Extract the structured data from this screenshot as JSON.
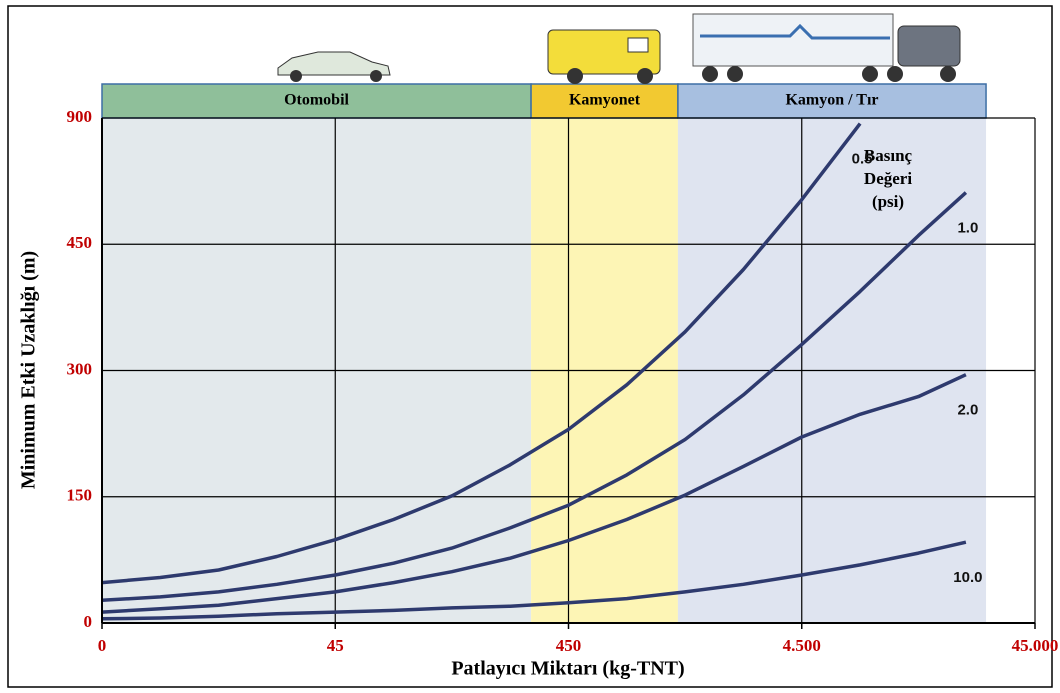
{
  "chart_data": {
    "type": "line",
    "x_label": "Patlayıcı Miktarı (kg-TNT)",
    "y_label": "Minimum Etki Uzaklığı (m)",
    "legend_title": "Basınç Değeri (psi)",
    "xlim": [
      0,
      45000
    ],
    "xticks": [
      0,
      45,
      450,
      {
        "value": 4500,
        "label": "4.500"
      },
      {
        "value": 45000,
        "label": "45.000"
      }
    ],
    "ylim": [
      0,
      900
    ],
    "yticks": [
      0,
      150,
      300,
      450,
      900
    ],
    "grid": true,
    "bands": [
      {
        "label": "Otomobil",
        "from": 0,
        "to": 385,
        "color": "#e3e9ec",
        "header_color": "#8fbf9a"
      },
      {
        "label": "Kamyonet",
        "from": 385,
        "to": 2350,
        "color": "#fdf5b5",
        "header_color": "#f2c931"
      },
      {
        "label": "Kamyon / Tır",
        "from": 2350,
        "to": 36500,
        "color": "#dfe4f0",
        "header_color": "#a7bfe0"
      }
    ],
    "x": [
      0,
      11.25,
      22.5,
      33.75,
      45,
      146.25,
      247.5,
      348.75,
      450,
      1462.5,
      2475,
      3487.5,
      4500,
      14625,
      24750,
      33000
    ],
    "series": [
      {
        "name": "0.5",
        "color": "#2e3a6e",
        "values": [
          48,
          54,
          63,
          79,
          99,
          123,
          151,
          188,
          230,
          283,
          346,
          420,
          609,
          880,
          null,
          null
        ]
      },
      {
        "name": "1.0",
        "color": "#2e3a6e",
        "values": [
          27,
          31,
          37,
          46,
          57,
          71,
          89,
          113,
          140,
          176,
          218,
          271,
          331,
          394,
          481,
          634
        ]
      },
      {
        "name": "2.0",
        "color": "#2e3a6e",
        "values": [
          13,
          17,
          21,
          29,
          37,
          48,
          61,
          77,
          98,
          123,
          152,
          186,
          221,
          248,
          269,
          295
        ]
      },
      {
        "name": "10.0",
        "color": "#2e3a6e",
        "values": [
          5,
          6,
          8,
          11,
          13,
          15,
          18,
          20,
          24,
          29,
          37,
          46,
          57,
          69,
          83,
          96
        ]
      }
    ]
  }
}
